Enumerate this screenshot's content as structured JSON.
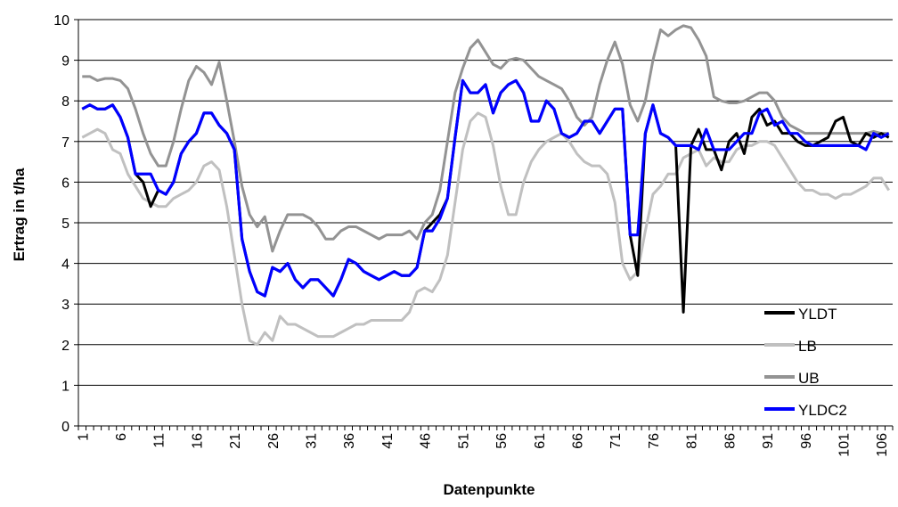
{
  "chart_data": {
    "type": "line",
    "xlabel": "Datenpunkte",
    "ylabel": "Ertrag in t/ha",
    "ylim": [
      0,
      10
    ],
    "y_ticks": [
      0,
      1,
      2,
      3,
      4,
      5,
      6,
      7,
      8,
      9,
      10
    ],
    "x_tick_labels": [
      "1",
      "6",
      "11",
      "16",
      "21",
      "26",
      "31",
      "36",
      "41",
      "46",
      "51",
      "56",
      "61",
      "66",
      "71",
      "76",
      "81",
      "86",
      "91",
      "96",
      "101",
      "106"
    ],
    "x_count": 107,
    "grid": "horizontal",
    "legend_position": "bottom-right",
    "series": [
      {
        "name": "YLDT",
        "color": "#000000",
        "values": [
          7.8,
          7.9,
          7.8,
          7.8,
          7.9,
          7.6,
          7.1,
          6.2,
          6.0,
          5.4,
          5.8,
          5.7,
          6.0,
          6.7,
          7.0,
          7.2,
          7.7,
          7.7,
          7.4,
          7.2,
          6.8,
          4.6,
          3.8,
          3.3,
          3.2,
          3.9,
          3.8,
          4.0,
          3.6,
          3.4,
          3.6,
          3.6,
          3.4,
          3.2,
          3.6,
          4.1,
          4.0,
          3.8,
          3.7,
          3.6,
          3.7,
          3.8,
          3.7,
          3.7,
          3.9,
          4.8,
          5.0,
          5.2,
          5.6,
          7.1,
          8.5,
          8.2,
          8.2,
          8.4,
          7.7,
          8.2,
          8.4,
          8.5,
          8.2,
          7.5,
          7.5,
          8.0,
          7.8,
          7.2,
          7.1,
          7.2,
          7.5,
          7.5,
          7.2,
          7.5,
          7.8,
          7.8,
          4.7,
          3.7,
          7.2,
          7.9,
          7.2,
          7.1,
          6.9,
          2.8,
          6.9,
          7.3,
          6.8,
          6.8,
          6.3,
          7.0,
          7.2,
          6.7,
          7.6,
          7.8,
          7.4,
          7.5,
          7.2,
          7.2,
          7.0,
          6.9,
          6.9,
          7.0,
          7.1,
          7.5,
          7.6,
          7.0,
          6.9,
          7.2,
          7.1,
          7.2,
          7.1
        ]
      },
      {
        "name": "LB",
        "color": "#c0c0c0",
        "values": [
          7.1,
          7.2,
          7.3,
          7.2,
          6.8,
          6.7,
          6.2,
          5.9,
          5.6,
          5.5,
          5.4,
          5.4,
          5.6,
          5.7,
          5.8,
          6.0,
          6.4,
          6.5,
          6.3,
          5.4,
          4.2,
          3.0,
          2.1,
          2.0,
          2.3,
          2.1,
          2.7,
          2.5,
          2.5,
          2.4,
          2.3,
          2.2,
          2.2,
          2.2,
          2.3,
          2.4,
          2.5,
          2.5,
          2.6,
          2.6,
          2.6,
          2.6,
          2.6,
          2.8,
          3.3,
          3.4,
          3.3,
          3.6,
          4.2,
          5.5,
          6.8,
          7.5,
          7.7,
          7.6,
          6.9,
          5.9,
          5.2,
          5.2,
          6.0,
          6.5,
          6.8,
          7.0,
          7.1,
          7.2,
          7.0,
          6.7,
          6.5,
          6.4,
          6.4,
          6.2,
          5.5,
          4.0,
          3.6,
          3.8,
          4.8,
          5.7,
          5.9,
          6.2,
          6.2,
          6.6,
          6.7,
          6.8,
          6.4,
          6.6,
          6.5,
          6.5,
          6.8,
          6.9,
          6.9,
          7.0,
          7.0,
          6.9,
          6.6,
          6.3,
          6.0,
          5.8,
          5.8,
          5.7,
          5.7,
          5.6,
          5.7,
          5.7,
          5.8,
          5.9,
          6.1,
          6.1,
          5.8
        ]
      },
      {
        "name": "UB",
        "color": "#939393",
        "values": [
          8.6,
          8.6,
          8.5,
          8.55,
          8.55,
          8.5,
          8.3,
          7.8,
          7.2,
          6.7,
          6.4,
          6.4,
          7.0,
          7.8,
          8.5,
          8.85,
          8.7,
          8.4,
          8.95,
          8.0,
          7.0,
          5.9,
          5.2,
          4.9,
          5.15,
          4.3,
          4.8,
          5.2,
          5.2,
          5.2,
          5.1,
          4.9,
          4.6,
          4.6,
          4.8,
          4.9,
          4.9,
          4.8,
          4.7,
          4.6,
          4.7,
          4.7,
          4.7,
          4.8,
          4.6,
          5.0,
          5.2,
          5.8,
          7.0,
          8.2,
          8.8,
          9.3,
          9.5,
          9.2,
          8.9,
          8.8,
          9.0,
          9.05,
          9.0,
          8.8,
          8.6,
          8.5,
          8.4,
          8.3,
          8.0,
          7.6,
          7.4,
          7.6,
          8.4,
          9.0,
          9.45,
          8.9,
          7.9,
          7.5,
          8.0,
          9.0,
          9.75,
          9.6,
          9.75,
          9.85,
          9.8,
          9.5,
          9.1,
          8.1,
          8.0,
          7.95,
          7.95,
          8.0,
          8.1,
          8.2,
          8.2,
          8.0,
          7.6,
          7.4,
          7.3,
          7.2,
          7.2,
          7.2,
          7.2,
          7.2,
          7.2,
          7.2,
          7.2,
          7.2,
          7.25,
          7.2,
          7.2
        ]
      },
      {
        "name": "YLDC2",
        "color": "#0000ff",
        "values": [
          7.8,
          7.9,
          7.8,
          7.8,
          7.9,
          7.6,
          7.1,
          6.2,
          6.2,
          6.2,
          5.8,
          5.7,
          6.0,
          6.7,
          7.0,
          7.2,
          7.7,
          7.7,
          7.4,
          7.2,
          6.8,
          4.6,
          3.8,
          3.3,
          3.2,
          3.9,
          3.8,
          4.0,
          3.6,
          3.4,
          3.6,
          3.6,
          3.4,
          3.2,
          3.6,
          4.1,
          4.0,
          3.8,
          3.7,
          3.6,
          3.7,
          3.8,
          3.7,
          3.7,
          3.9,
          4.8,
          4.8,
          5.1,
          5.6,
          7.1,
          8.5,
          8.2,
          8.2,
          8.4,
          7.7,
          8.2,
          8.4,
          8.5,
          8.2,
          7.5,
          7.5,
          8.0,
          7.8,
          7.2,
          7.1,
          7.2,
          7.5,
          7.5,
          7.2,
          7.5,
          7.8,
          7.8,
          4.7,
          4.7,
          7.2,
          7.9,
          7.2,
          7.1,
          6.9,
          6.9,
          6.9,
          6.8,
          7.3,
          6.8,
          6.8,
          6.8,
          7.0,
          7.2,
          7.2,
          7.7,
          7.8,
          7.4,
          7.5,
          7.2,
          7.2,
          7.0,
          6.9,
          6.9,
          6.9,
          6.9,
          6.9,
          6.9,
          6.9,
          6.8,
          7.2,
          7.1,
          7.2
        ]
      }
    ]
  }
}
